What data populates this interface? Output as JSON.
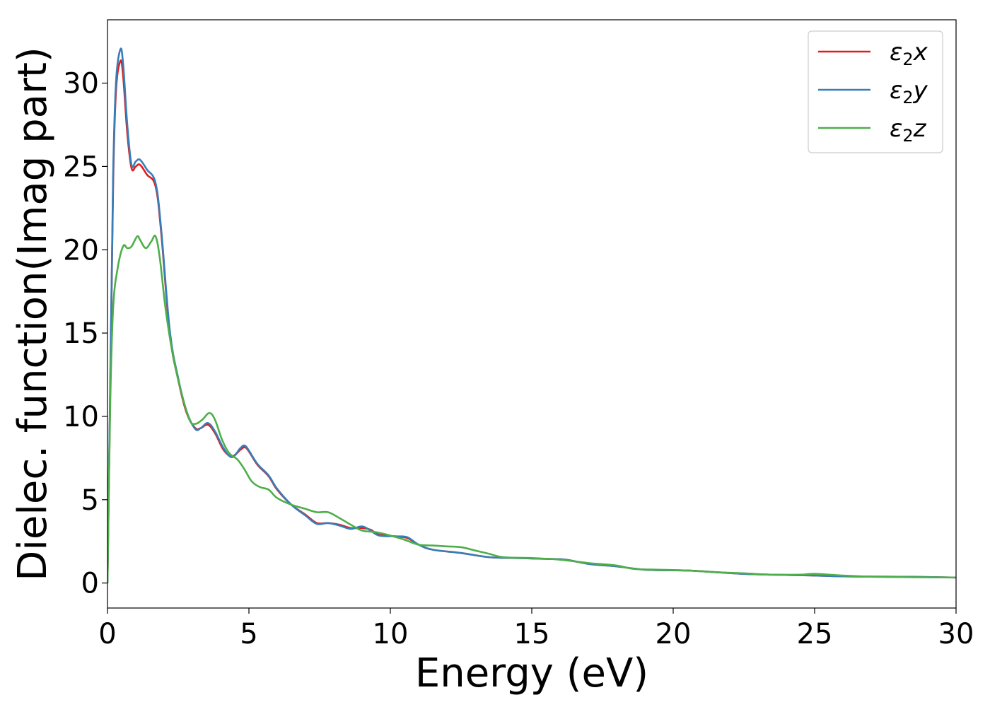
{
  "chart_data": {
    "type": "line",
    "xlabel": "Energy (eV)",
    "ylabel": "Dielec. function(Imag part)",
    "xlim": [
      0,
      30
    ],
    "ylim": [
      -1.5,
      33.8
    ],
    "x_ticks": [
      0,
      5,
      10,
      15,
      20,
      25,
      30
    ],
    "y_ticks": [
      0,
      5,
      10,
      15,
      20,
      25,
      30
    ],
    "grid": false,
    "legend_position": "top-right",
    "series": [
      {
        "name": "ε₂x",
        "legend_base": "ε",
        "legend_sub": "2",
        "legend_var": "x",
        "color": "#e41a1c",
        "points": [
          [
            0,
            0
          ],
          [
            0.1,
            12
          ],
          [
            0.2,
            24
          ],
          [
            0.3,
            29.5
          ],
          [
            0.45,
            31.3
          ],
          [
            0.55,
            30.5
          ],
          [
            0.7,
            27
          ],
          [
            0.85,
            24.9
          ],
          [
            1.0,
            25.0
          ],
          [
            1.15,
            25.1
          ],
          [
            1.4,
            24.5
          ],
          [
            1.7,
            23.8
          ],
          [
            1.9,
            21
          ],
          [
            2.2,
            15
          ],
          [
            2.5,
            12.2
          ],
          [
            2.8,
            10.2
          ],
          [
            3.1,
            9.3
          ],
          [
            3.3,
            9.3
          ],
          [
            3.55,
            9.5
          ],
          [
            3.8,
            9.0
          ],
          [
            4.1,
            8.0
          ],
          [
            4.4,
            7.6
          ],
          [
            4.7,
            8.0
          ],
          [
            4.85,
            8.15
          ],
          [
            5.0,
            7.9
          ],
          [
            5.3,
            7.1
          ],
          [
            5.7,
            6.4
          ],
          [
            6.0,
            5.6
          ],
          [
            6.5,
            4.7
          ],
          [
            7.0,
            4.1
          ],
          [
            7.4,
            3.6
          ],
          [
            7.8,
            3.6
          ],
          [
            8.2,
            3.5
          ],
          [
            8.6,
            3.3
          ],
          [
            9.0,
            3.3
          ],
          [
            9.3,
            3.2
          ],
          [
            9.6,
            2.9
          ],
          [
            10.2,
            2.8
          ],
          [
            10.6,
            2.7
          ],
          [
            11.0,
            2.3
          ],
          [
            11.5,
            2.0
          ],
          [
            12.5,
            1.8
          ],
          [
            13.5,
            1.55
          ],
          [
            14.5,
            1.5
          ],
          [
            15.5,
            1.45
          ],
          [
            16.2,
            1.4
          ],
          [
            17.0,
            1.15
          ],
          [
            18.0,
            1.0
          ],
          [
            19.0,
            0.8
          ],
          [
            20.5,
            0.75
          ],
          [
            21.5,
            0.65
          ],
          [
            22.5,
            0.55
          ],
          [
            23.5,
            0.5
          ],
          [
            25.0,
            0.45
          ],
          [
            26.0,
            0.4
          ],
          [
            27.5,
            0.38
          ],
          [
            28.5,
            0.37
          ],
          [
            30.0,
            0.33
          ]
        ]
      },
      {
        "name": "ε₂y",
        "legend_base": "ε",
        "legend_sub": "2",
        "legend_var": "y",
        "color": "#377eb8",
        "points": [
          [
            0,
            0
          ],
          [
            0.1,
            12.5
          ],
          [
            0.2,
            24.5
          ],
          [
            0.3,
            30
          ],
          [
            0.45,
            32.0
          ],
          [
            0.55,
            31.2
          ],
          [
            0.7,
            27.5
          ],
          [
            0.85,
            25.1
          ],
          [
            1.0,
            25.3
          ],
          [
            1.15,
            25.4
          ],
          [
            1.4,
            24.8
          ],
          [
            1.7,
            24.0
          ],
          [
            1.9,
            21.2
          ],
          [
            2.2,
            15.2
          ],
          [
            2.5,
            12.3
          ],
          [
            2.8,
            10.3
          ],
          [
            3.1,
            9.25
          ],
          [
            3.3,
            9.3
          ],
          [
            3.55,
            9.6
          ],
          [
            3.8,
            9.1
          ],
          [
            4.1,
            8.1
          ],
          [
            4.4,
            7.55
          ],
          [
            4.7,
            8.1
          ],
          [
            4.85,
            8.25
          ],
          [
            5.0,
            7.95
          ],
          [
            5.3,
            7.15
          ],
          [
            5.7,
            6.45
          ],
          [
            6.0,
            5.65
          ],
          [
            6.5,
            4.7
          ],
          [
            7.0,
            4.05
          ],
          [
            7.4,
            3.55
          ],
          [
            7.8,
            3.6
          ],
          [
            8.2,
            3.45
          ],
          [
            8.6,
            3.25
          ],
          [
            9.0,
            3.4
          ],
          [
            9.3,
            3.15
          ],
          [
            9.6,
            2.85
          ],
          [
            10.2,
            2.8
          ],
          [
            10.6,
            2.75
          ],
          [
            11.0,
            2.3
          ],
          [
            11.5,
            2.0
          ],
          [
            12.5,
            1.8
          ],
          [
            13.5,
            1.55
          ],
          [
            14.5,
            1.5
          ],
          [
            15.5,
            1.45
          ],
          [
            16.2,
            1.4
          ],
          [
            17.0,
            1.15
          ],
          [
            18.0,
            1.0
          ],
          [
            19.0,
            0.8
          ],
          [
            20.5,
            0.75
          ],
          [
            21.5,
            0.65
          ],
          [
            22.5,
            0.55
          ],
          [
            23.5,
            0.5
          ],
          [
            25.0,
            0.45
          ],
          [
            26.0,
            0.4
          ],
          [
            27.5,
            0.38
          ],
          [
            28.5,
            0.37
          ],
          [
            30.0,
            0.33
          ]
        ]
      },
      {
        "name": "ε₂z",
        "legend_base": "ε",
        "legend_sub": "2",
        "legend_var": "z",
        "color": "#4daf4a",
        "points": [
          [
            0,
            0
          ],
          [
            0.1,
            11
          ],
          [
            0.2,
            16.5
          ],
          [
            0.35,
            18.8
          ],
          [
            0.55,
            20.2
          ],
          [
            0.7,
            20.1
          ],
          [
            0.85,
            20.2
          ],
          [
            1.05,
            20.8
          ],
          [
            1.15,
            20.6
          ],
          [
            1.35,
            20.1
          ],
          [
            1.55,
            20.5
          ],
          [
            1.7,
            20.8
          ],
          [
            1.85,
            19.5
          ],
          [
            2.05,
            16.5
          ],
          [
            2.3,
            13.8
          ],
          [
            2.6,
            11.5
          ],
          [
            2.9,
            9.8
          ],
          [
            3.1,
            9.55
          ],
          [
            3.35,
            9.8
          ],
          [
            3.6,
            10.2
          ],
          [
            3.8,
            9.8
          ],
          [
            4.05,
            8.6
          ],
          [
            4.3,
            7.8
          ],
          [
            4.6,
            7.4
          ],
          [
            4.85,
            6.8
          ],
          [
            5.1,
            6.1
          ],
          [
            5.4,
            5.75
          ],
          [
            5.7,
            5.6
          ],
          [
            6.0,
            5.1
          ],
          [
            6.5,
            4.7
          ],
          [
            7.0,
            4.45
          ],
          [
            7.4,
            4.25
          ],
          [
            7.8,
            4.25
          ],
          [
            8.2,
            3.9
          ],
          [
            8.6,
            3.5
          ],
          [
            9.0,
            3.15
          ],
          [
            9.5,
            3.05
          ],
          [
            10.0,
            2.85
          ],
          [
            10.5,
            2.6
          ],
          [
            11.0,
            2.3
          ],
          [
            11.5,
            2.25
          ],
          [
            12.0,
            2.2
          ],
          [
            12.5,
            2.15
          ],
          [
            13.0,
            1.95
          ],
          [
            13.5,
            1.75
          ],
          [
            14.0,
            1.55
          ],
          [
            15.0,
            1.5
          ],
          [
            16.0,
            1.4
          ],
          [
            17.0,
            1.2
          ],
          [
            18.0,
            1.05
          ],
          [
            18.6,
            0.85
          ],
          [
            19.5,
            0.8
          ],
          [
            20.5,
            0.75
          ],
          [
            21.5,
            0.65
          ],
          [
            22.5,
            0.58
          ],
          [
            23.5,
            0.5
          ],
          [
            24.5,
            0.5
          ],
          [
            25.0,
            0.55
          ],
          [
            26.0,
            0.45
          ],
          [
            27.0,
            0.38
          ],
          [
            28.5,
            0.35
          ],
          [
            30.0,
            0.33
          ]
        ]
      }
    ]
  }
}
